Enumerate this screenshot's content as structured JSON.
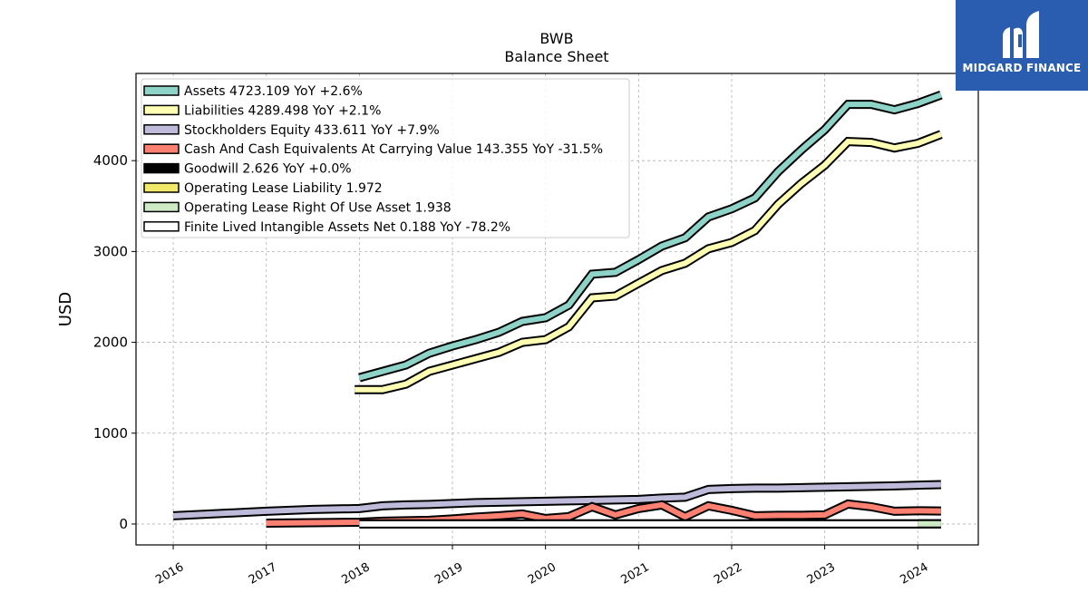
{
  "logo": {
    "name": "MIDGARD FINANCE",
    "icon": "midgard-logo-mark",
    "color": "#2a5db0"
  },
  "chart_data": {
    "type": "line",
    "title": "BWB",
    "subtitle": "Balance  Sheet",
    "xlabel": "",
    "ylabel": "USD",
    "xlim": [
      2015.6,
      2024.65
    ],
    "ylim": [
      -230,
      4960
    ],
    "xticks": [
      2016,
      2017,
      2018,
      2019,
      2020,
      2021,
      2022,
      2023,
      2024
    ],
    "xtick_labels": [
      "2016",
      "2017",
      "2018",
      "2019",
      "2020",
      "2021",
      "2022",
      "2023",
      "2024"
    ],
    "yticks": [
      0,
      1000,
      2000,
      3000,
      4000
    ],
    "ytick_labels": [
      "0",
      "1000",
      "2000",
      "3000",
      "4000"
    ],
    "grid": true,
    "legend_position": "top-left",
    "series": [
      {
        "name": "Assets",
        "legend": "Assets  4723.109 YoY +2.6%",
        "color": "#8dd3c7",
        "x": [
          2018.0,
          2018.25,
          2018.5,
          2018.75,
          2019.0,
          2019.25,
          2019.5,
          2019.75,
          2020.0,
          2020.25,
          2020.5,
          2020.75,
          2021.0,
          2021.25,
          2021.5,
          2021.75,
          2022.0,
          2022.25,
          2022.5,
          2022.75,
          2023.0,
          2023.25,
          2023.5,
          2023.75,
          2024.0,
          2024.25
        ],
        "y": [
          1610,
          1680,
          1750,
          1880,
          1960,
          2030,
          2110,
          2230,
          2270,
          2410,
          2750,
          2770,
          2910,
          3060,
          3150,
          3380,
          3470,
          3590,
          3880,
          4120,
          4340,
          4620,
          4620,
          4560,
          4630,
          4723
        ]
      },
      {
        "name": "Liabilities",
        "legend": "Liabilities  4289.498 YoY +2.1%",
        "color": "#ffffb3",
        "x": [
          2017.95,
          2018.25,
          2018.5,
          2018.75,
          2019.0,
          2019.25,
          2019.5,
          2019.75,
          2020.0,
          2020.25,
          2020.5,
          2020.75,
          2021.0,
          2021.25,
          2021.5,
          2021.75,
          2022.0,
          2022.25,
          2022.5,
          2022.75,
          2023.0,
          2023.25,
          2023.5,
          2023.75,
          2024.0,
          2024.25
        ],
        "y": [
          1480,
          1480,
          1540,
          1680,
          1750,
          1820,
          1890,
          2000,
          2030,
          2170,
          2490,
          2510,
          2650,
          2790,
          2870,
          3030,
          3100,
          3230,
          3520,
          3750,
          3950,
          4210,
          4200,
          4140,
          4190,
          4289
        ]
      },
      {
        "name": "Stockholders Equity",
        "legend": "Stockholders Equity  433.611 YoY +7.9%",
        "color": "#bebada",
        "x": [
          2016.0,
          2016.5,
          2017.0,
          2017.5,
          2018.0,
          2018.25,
          2018.5,
          2018.75,
          2019.0,
          2019.25,
          2019.5,
          2019.75,
          2020.0,
          2020.25,
          2020.5,
          2020.75,
          2021.0,
          2021.25,
          2021.5,
          2021.75,
          2022.0,
          2022.25,
          2022.5,
          2022.75,
          2023.0,
          2023.25,
          2023.5,
          2023.75,
          2024.0,
          2024.25
        ],
        "y": [
          90,
          115,
          140,
          160,
          170,
          200,
          210,
          215,
          225,
          235,
          240,
          245,
          250,
          255,
          260,
          265,
          270,
          285,
          295,
          380,
          390,
          395,
          395,
          400,
          405,
          410,
          415,
          420,
          428,
          434
        ]
      },
      {
        "name": "Cash And Cash Equivalents At Carrying Value",
        "legend": "Cash And Cash Equivalents At Carrying Value  143.355 YoY -31.5%",
        "color": "#fb8072",
        "x": [
          2017.0,
          2017.5,
          2018.0,
          2018.25,
          2018.5,
          2018.75,
          2019.0,
          2019.25,
          2019.5,
          2019.75,
          2020.0,
          2020.25,
          2020.5,
          2020.75,
          2021.0,
          2021.25,
          2021.5,
          2021.75,
          2022.0,
          2022.25,
          2022.5,
          2022.75,
          2023.0,
          2023.25,
          2023.5,
          2023.75,
          2024.0,
          2024.25
        ],
        "y": [
          10,
          15,
          20,
          30,
          35,
          40,
          55,
          75,
          90,
          110,
          60,
          80,
          190,
          100,
          170,
          210,
          80,
          200,
          150,
          90,
          95,
          95,
          100,
          220,
          190,
          140,
          145,
          143
        ]
      },
      {
        "name": "Goodwill",
        "legend": "Goodwill  2.626 YoY +0.0%",
        "color": "#000000",
        "x": [
          2018.0,
          2024.25
        ],
        "y": [
          2.6,
          2.6
        ]
      },
      {
        "name": "Operating Lease Liability",
        "legend": "Operating Lease Liability  1.972",
        "color": "#f2e86a",
        "x": [
          2024.0,
          2024.25
        ],
        "y": [
          2.0,
          1.97
        ]
      },
      {
        "name": "Operating Lease Right Of Use Asset",
        "legend": "Operating Lease Right Of Use Asset  1.938",
        "color": "#ccebc5",
        "x": [
          2024.0,
          2024.25
        ],
        "y": [
          1.9,
          1.94
        ]
      },
      {
        "name": "Finite Lived Intangible Assets Net",
        "legend": "Finite Lived Intangible Assets Net  0.188 YoY -78.2%",
        "color": "#ffffff",
        "x": [
          2018.0,
          2024.0
        ],
        "y": [
          0.9,
          0.19
        ]
      }
    ]
  }
}
